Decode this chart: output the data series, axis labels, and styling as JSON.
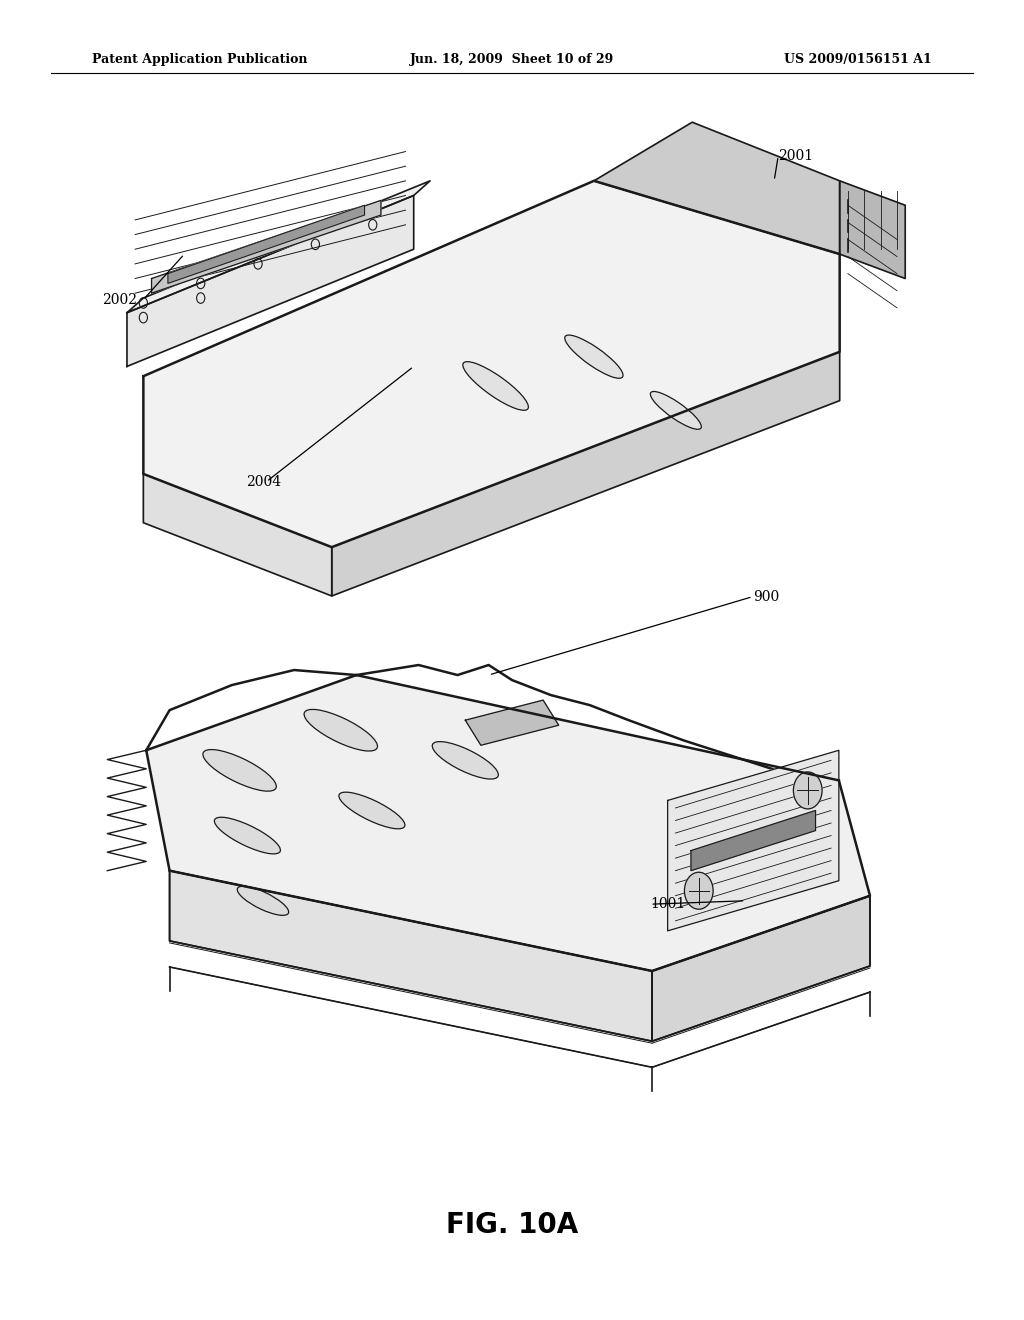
{
  "background_color": "#ffffff",
  "header_left": "Patent Application Publication",
  "header_center": "Jun. 18, 2009  Sheet 10 of 29",
  "header_right": "US 2009/0156151 A1",
  "figure_label": "FIG. 10A",
  "color_line": "#1a1a1a",
  "lw_main": 1.2,
  "lw_thick": 1.8
}
